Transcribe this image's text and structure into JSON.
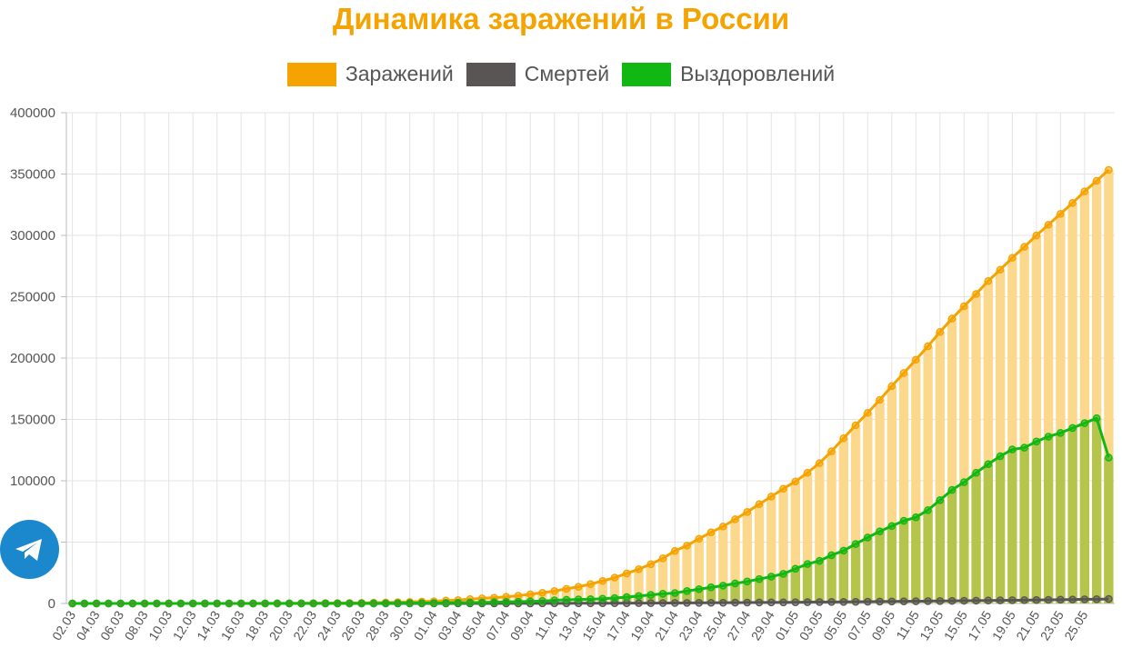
{
  "chart_data": {
    "type": "bar",
    "title": "Динамика заражений в России",
    "ylim": [
      0,
      400000
    ],
    "y_ticks": [
      "400000",
      "350000",
      "300000",
      "250000",
      "200000",
      "150000",
      "100000",
      "50000",
      "0"
    ],
    "grid": true,
    "legend_position": "top-center",
    "x_tick_labels": [
      "02.03",
      "04.03",
      "06.03",
      "08.03",
      "10.03",
      "12.03",
      "14.03",
      "16.03",
      "18.03",
      "20.03",
      "22.03",
      "24.03",
      "26.03",
      "28.03",
      "30.03",
      "01.04",
      "03.04",
      "05.04",
      "07.04",
      "09.04",
      "11.04",
      "13.04",
      "15.04",
      "17.04",
      "19.04",
      "21.04",
      "23.04",
      "25.04",
      "27.04",
      "29.04",
      "01.05",
      "03.05",
      "05.05",
      "07.05",
      "09.05",
      "11.05",
      "13.05",
      "15.05",
      "17.05",
      "19.05",
      "21.05",
      "23.05",
      "25.05"
    ],
    "series": [
      {
        "name": "Заражений",
        "color": "#f5a300",
        "fill_color": "#fbd88c",
        "render": "bar+line",
        "values": [
          3,
          3,
          3,
          3,
          4,
          4,
          5,
          7,
          10,
          13,
          17,
          20,
          28,
          34,
          45,
          63,
          93,
          114,
          147,
          199,
          253,
          306,
          367,
          438,
          495,
          658,
          840,
          1036,
          1264,
          1534,
          1836,
          2337,
          2777,
          3548,
          4149,
          4731,
          5389,
          6343,
          7497,
          8672,
          10131,
          11917,
          13584,
          15770,
          18328,
          21102,
          24490,
          27938,
          32008,
          36793,
          42853,
          47121,
          52763,
          57999,
          62773,
          68622,
          74588,
          80949,
          87147,
          93558,
          99399,
          106498,
          114431,
          124054,
          134687,
          145268,
          155370,
          165929,
          177160,
          187859,
          198676,
          209688,
          221344,
          232243,
          242271,
          252245,
          262843,
          272043,
          281752,
          290678,
          299941,
          308705,
          317554,
          326448,
          335882,
          344481,
          353427
        ]
      },
      {
        "name": "Смертей",
        "color": "#5a5555",
        "render": "line",
        "values": [
          0,
          0,
          0,
          0,
          0,
          0,
          0,
          0,
          0,
          0,
          0,
          0,
          0,
          0,
          0,
          0,
          0,
          1,
          1,
          1,
          1,
          1,
          1,
          2,
          3,
          3,
          4,
          4,
          8,
          9,
          17,
          24,
          30,
          34,
          43,
          47,
          58,
          63,
          76,
          94,
          106,
          130,
          148,
          170,
          198,
          215,
          240,
          273,
          313,
          361,
          405,
          456,
          513,
          555,
          615,
          681,
          747,
          794,
          867,
          908,
          972,
          1073,
          1169,
          1222,
          1280,
          1356,
          1451,
          1537,
          1625,
          1723,
          1827,
          1915,
          2009,
          2116,
          2212,
          2305,
          2418,
          2537,
          2631,
          2722,
          2837,
          2972,
          3099,
          3249,
          3388,
          3468,
          3633
        ]
      },
      {
        "name": "Выздоровлений",
        "color": "#12b812",
        "fill_color": "#b5c44a",
        "render": "bar+line",
        "values": [
          0,
          0,
          0,
          0,
          0,
          0,
          0,
          0,
          0,
          0,
          2,
          2,
          2,
          3,
          5,
          8,
          8,
          16,
          22,
          29,
          38,
          43,
          45,
          49,
          66,
          121,
          190,
          235,
          333,
          355,
          398,
          494,
          580,
          694,
          794,
          1045,
          1291,
          1470,
          1694,
          1986,
          2559,
          3000,
          3291,
          3446,
          3863,
          4420,
          5205,
          6110,
          6985,
          7939,
          8456,
          10158,
          11661,
          13165,
          14524,
          16311,
          17904,
          19868,
          21917,
          24146,
          28281,
          32133,
          34733,
          39317,
          43049,
          48472,
          53743,
          58734,
          63149,
          67369,
          70209,
          76090,
          84237,
          92575,
          98849,
          106521,
          113542,
          120011,
          125551,
          127000,
          132000,
          136000,
          139000,
          143000,
          147000,
          151000,
          118904
        ]
      }
    ]
  },
  "legend": [
    {
      "label": "Заражений",
      "color": "#f5a300"
    },
    {
      "label": "Смертей",
      "color": "#5a5555"
    },
    {
      "label": "Выздоровлений",
      "color": "#12b812"
    }
  ],
  "share_button": {
    "icon": "telegram-icon",
    "color": "#1b87cc"
  }
}
